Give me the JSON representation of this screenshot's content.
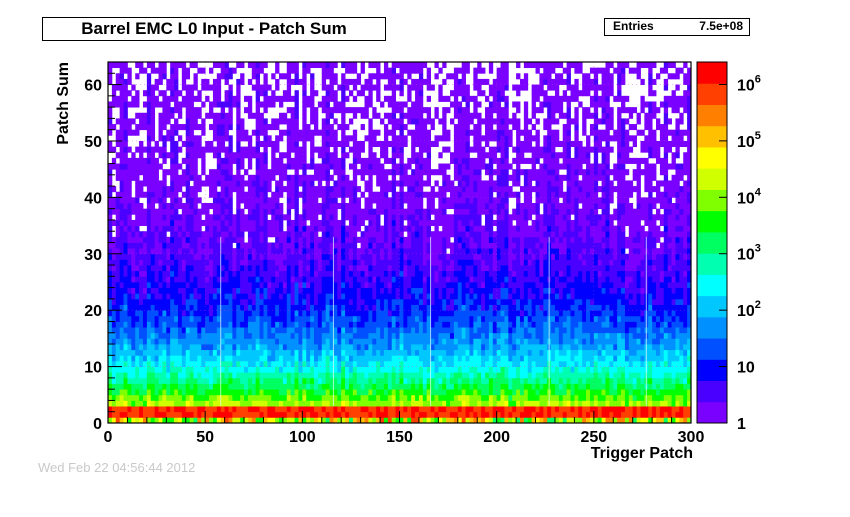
{
  "chart_data": {
    "type": "heatmap",
    "title": "Barrel EMC L0 Input - Patch Sum",
    "xlabel": "Trigger Patch",
    "ylabel": "Patch Sum",
    "xlim": [
      0,
      300
    ],
    "ylim": [
      0,
      64
    ],
    "x_ticks": [
      "0",
      "50",
      "100",
      "150",
      "200",
      "250",
      "300"
    ],
    "y_ticks": [
      "0",
      "10",
      "20",
      "30",
      "40",
      "50",
      "60"
    ],
    "z_scale": "log",
    "zlim": [
      1,
      2500000
    ],
    "colorbar_ticks": [
      {
        "value": 1,
        "label": "1",
        "exp": ""
      },
      {
        "value": 10,
        "label": "10",
        "exp": ""
      },
      {
        "value": 100,
        "label": "10",
        "exp": "2"
      },
      {
        "value": 1000,
        "label": "10",
        "exp": "3"
      },
      {
        "value": 10000,
        "label": "10",
        "exp": "4"
      },
      {
        "value": 100000,
        "label": "10",
        "exp": "5"
      },
      {
        "value": 1000000,
        "label": "10",
        "exp": "6"
      }
    ],
    "stats": {
      "label": "Entries",
      "value": "7.5e+08"
    },
    "palette": [
      "#7a00ff",
      "#4a00ff",
      "#0000ff",
      "#0050ff",
      "#0090ff",
      "#00c8ff",
      "#00ffff",
      "#00ffb0",
      "#00ff60",
      "#00ff00",
      "#80ff00",
      "#d0ff00",
      "#ffff00",
      "#ffc000",
      "#ff8000",
      "#ff4000",
      "#ff0000"
    ],
    "gridlines": true,
    "notes": "Per-bin counts fall from ~1e6 at Patch Sum 1-2 to ~1 near Patch Sum 60; counts are roughly uniform across trigger patches 0-300 with a few dead/hot columns."
  },
  "footer": {
    "date": "Wed Feb 22 04:56:44 2012"
  }
}
